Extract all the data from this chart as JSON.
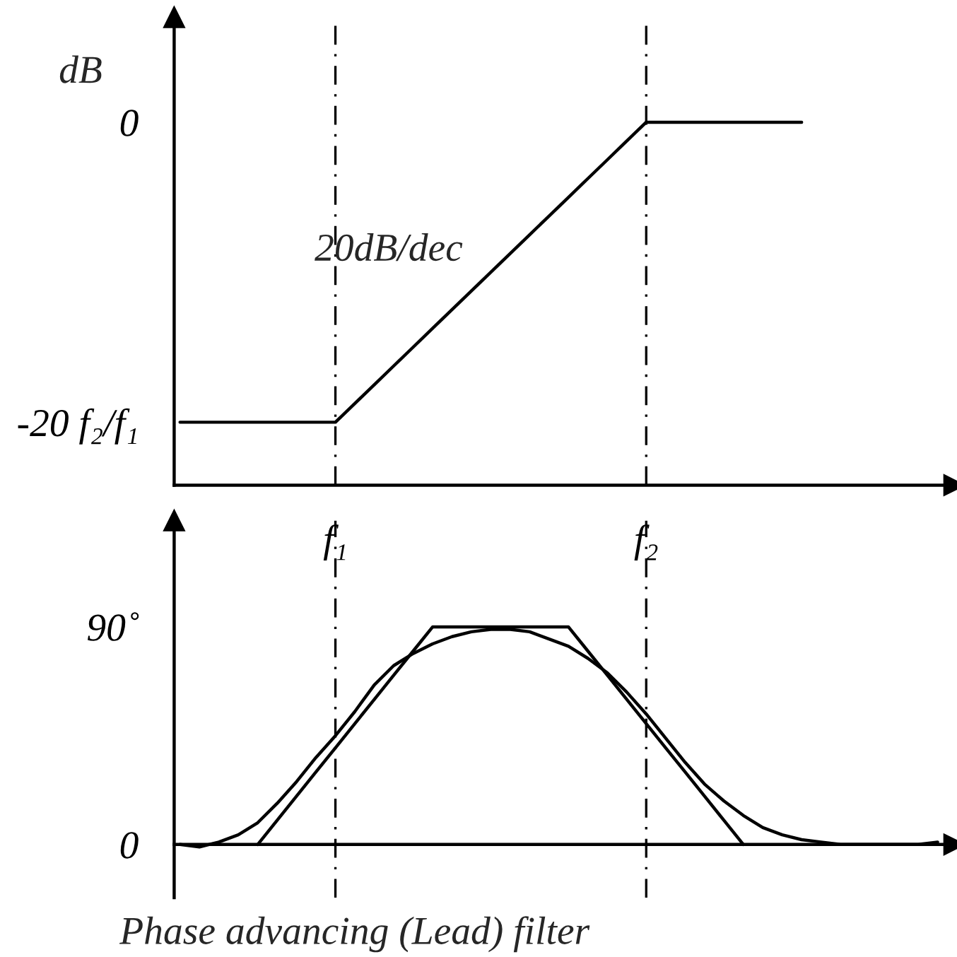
{
  "chart_data": [
    {
      "type": "line",
      "ylabel": "dB",
      "ylim": [
        -24.2,
        7
      ],
      "categories": [
        null,
        null,
        null,
        null,
        null,
        null,
        null,
        null,
        "f₁",
        null,
        null,
        null,
        null,
        null,
        null,
        null,
        null,
        null,
        null,
        null,
        null,
        null,
        null,
        null,
        "f₂",
        null,
        null,
        null,
        null,
        null,
        null,
        null,
        null,
        null,
        null,
        null,
        null,
        null,
        null,
        null
      ],
      "yticks": [
        {
          "value": -20,
          "label": "-20 f₂/f₁"
        },
        0
      ],
      "series": [
        {
          "color": "#000000",
          "values": [
            -20,
            -20,
            -20,
            -20,
            -20,
            -20,
            -20,
            -20,
            -20,
            -18.75,
            -17.5,
            -16.25,
            -15,
            -13.75,
            -12.5,
            -11.25,
            -10,
            -8.75,
            -7.5,
            -6.25,
            -5,
            -3.75,
            -2.5,
            -1.25,
            0,
            0,
            0,
            0,
            0,
            0,
            0,
            0,
            0,
            null,
            null,
            null,
            null,
            null,
            null,
            null
          ]
        }
      ],
      "ref_lines": [
        {
          "axis": "x",
          "value": "f₁",
          "color": "#000000",
          "line_style": "dashdot"
        },
        {
          "axis": "x",
          "value": "f₂",
          "color": "#000000",
          "line_style": "dashdot"
        }
      ],
      "annotations": [
        "20dB/dec"
      ],
      "grid": false,
      "legend": false
    },
    {
      "type": "line",
      "ylim": [
        -22,
        134
      ],
      "categories": [
        null,
        null,
        null,
        null,
        null,
        null,
        null,
        null,
        "f₁",
        null,
        null,
        null,
        null,
        null,
        null,
        null,
        null,
        null,
        null,
        null,
        null,
        null,
        null,
        null,
        "f₂",
        null,
        null,
        null,
        null,
        null,
        null,
        null,
        null,
        null,
        null,
        null,
        null,
        null,
        null,
        null
      ],
      "yticks": [
        0,
        {
          "value": 90,
          "label": "90˚"
        }
      ],
      "tick_labels": "y",
      "series": [
        {
          "color": "#000000",
          "values": [
            null,
            null,
            null,
            null,
            0,
            10,
            20,
            30,
            40,
            50,
            60,
            70,
            80,
            90,
            90,
            90,
            90,
            90,
            90,
            90,
            90,
            80,
            70,
            60,
            50,
            40,
            30,
            20,
            10,
            0,
            null,
            null,
            null,
            null,
            null,
            null,
            null,
            null,
            null,
            null
          ]
        },
        {
          "color": "#000000",
          "values": [
            0,
            -1,
            1,
            4,
            9,
            17,
            26,
            36,
            45,
            55,
            66,
            74,
            79,
            83,
            86,
            88,
            89,
            89,
            88,
            85,
            82,
            77,
            71,
            63,
            54,
            44,
            34,
            25,
            18,
            12,
            7,
            4,
            2,
            1,
            0,
            0,
            0,
            0,
            0,
            1
          ]
        }
      ],
      "ref_lines": [
        {
          "axis": "x",
          "value": "f₁",
          "color": "#000000",
          "line_style": "dashdot"
        },
        {
          "axis": "x",
          "value": "f₂",
          "color": "#000000",
          "line_style": "dashdot"
        }
      ],
      "annotations": [
        "Phase advancing (Lead) filter"
      ],
      "grid": false,
      "legend": false
    }
  ]
}
